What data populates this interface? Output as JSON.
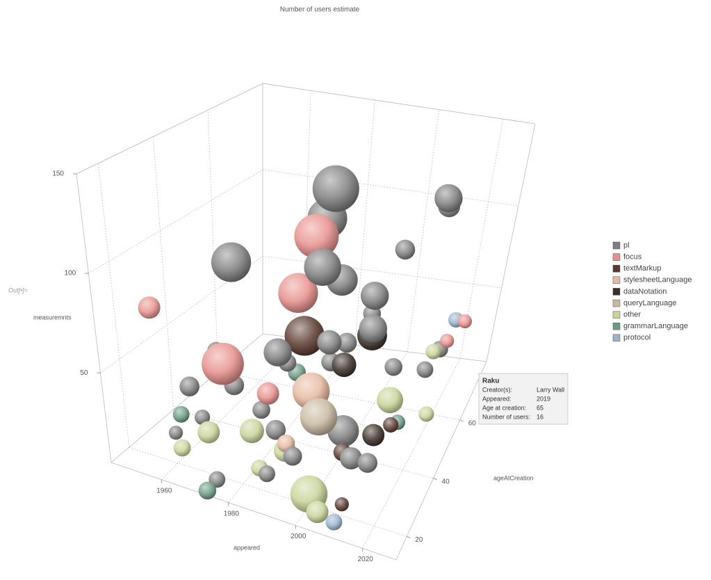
{
  "out_label": "Out[•]=",
  "chart_data": {
    "type": "bubble3d",
    "title": "Number of users estimate",
    "x_label": "appeared",
    "y_label": "ageAtCreation",
    "z_label": "measuremnts",
    "xlim": [
      1945,
      2030
    ],
    "xticks": [
      1960,
      1980,
      2000,
      2020
    ],
    "ylim": [
      12,
      80
    ],
    "yticks": [
      20,
      40,
      60
    ],
    "zlim": [
      5,
      150
    ],
    "zticks": [
      50,
      100,
      150
    ],
    "grid": true,
    "legend": "right",
    "series": [
      {
        "name": "pl",
        "color": "#7f7f7f",
        "x": [
          1995,
          1990,
          1972,
          1992,
          1995,
          2005,
          2012,
          2010,
          2008,
          2000,
          2010,
          1975,
          1965,
          1970,
          1985,
          2000,
          2005,
          2010,
          2015,
          1990,
          1960,
          1965,
          1980,
          1995,
          2010,
          2018,
          2020,
          1975,
          1985,
          1998,
          2002,
          1990
        ],
        "y": [
          40,
          45,
          30,
          40,
          45,
          45,
          70,
          75,
          55,
          30,
          35,
          25,
          20,
          25,
          30,
          40,
          30,
          25,
          25,
          20,
          20,
          25,
          30,
          20,
          50,
          55,
          60,
          15,
          35,
          35,
          50,
          15
        ],
        "z": [
          135,
          115,
          100,
          95,
          85,
          80,
          110,
          100,
          95,
          70,
          75,
          45,
          45,
          60,
          60,
          60,
          30,
          25,
          25,
          35,
          20,
          25,
          30,
          25,
          40,
          35,
          40,
          10,
          50,
          55,
          65,
          20
        ],
        "size": [
          110,
          80,
          80,
          70,
          50,
          40,
          40,
          25,
          20,
          30,
          40,
          20,
          20,
          15,
          40,
          20,
          50,
          25,
          20,
          20,
          10,
          12,
          16,
          18,
          16,
          14,
          14,
          14,
          16,
          18,
          16,
          14
        ]
      },
      {
        "name": "focus",
        "color": "#e8908c",
        "x": [
          1990,
          1975,
          1985,
          1955,
          1985,
          2022,
          2025
        ],
        "y": [
          40,
          20,
          40,
          20,
          25,
          60,
          65
        ],
        "z": [
          110,
          60,
          80,
          80,
          45,
          45,
          50
        ],
        "size": [
          100,
          90,
          80,
          25,
          25,
          10,
          10
        ]
      },
      {
        "name": "textMarkup",
        "color": "#5a3a30",
        "x": [
          1990,
          2005,
          2015,
          2010
        ],
        "y": [
          35,
          30,
          40,
          20
        ],
        "z": [
          65,
          20,
          25,
          10
        ],
        "size": [
          80,
          16,
          12,
          10
        ]
      },
      {
        "name": "stylesheetLanguage",
        "color": "#e6b8a0",
        "x": [
          1995,
          1993
        ],
        "y": [
          30,
          20
        ],
        "z": [
          45,
          30
        ],
        "size": [
          70,
          16
        ]
      },
      {
        "name": "dataNotation",
        "color": "#3a3028",
        "x": [
          2005,
          2012,
          2002
        ],
        "y": [
          45,
          35,
          35
        ],
        "z": [
          60,
          25,
          55
        ],
        "size": [
          45,
          25,
          30
        ]
      },
      {
        "name": "queryLanguage",
        "color": "#c8b8a0",
        "x": [
          2000
        ],
        "y": [
          25
        ],
        "z": [
          40
        ],
        "size": [
          70
        ]
      },
      {
        "name": "other",
        "color": "#c8d498",
        "x": [
          2000,
          1980,
          1970,
          1990,
          2012,
          2005,
          1965,
          2020,
          2022,
          1985
        ],
        "y": [
          20,
          25,
          20,
          25,
          45,
          15,
          15,
          55,
          50,
          20
        ],
        "z": [
          10,
          25,
          25,
          20,
          30,
          10,
          20,
          45,
          20,
          15
        ],
        "size": [
          70,
          30,
          25,
          25,
          35,
          25,
          15,
          12,
          12,
          14
        ]
      },
      {
        "name": "grammarLanguage",
        "color": "#6a9a84",
        "x": [
          1962,
          1975,
          2015,
          1985
        ],
        "y": [
          20,
          10,
          45,
          40
        ],
        "z": [
          30,
          10,
          20,
          40
        ],
        "size": [
          14,
          16,
          12,
          16
        ]
      },
      {
        "name": "protocol",
        "color": "#9ab4cc",
        "x": [
          2010,
          1992,
          2022
        ],
        "y": [
          15,
          30,
          65
        ],
        "z": [
          8,
          45,
          50
        ],
        "size": [
          14,
          14,
          12
        ]
      }
    ],
    "tooltip": {
      "title": "Raku",
      "rows": [
        [
          "Creator(s):",
          "Larry Wall"
        ],
        [
          "Appeared:",
          2019
        ],
        [
          "Age at creation:",
          65
        ],
        [
          "Number of users:",
          16
        ]
      ]
    }
  }
}
